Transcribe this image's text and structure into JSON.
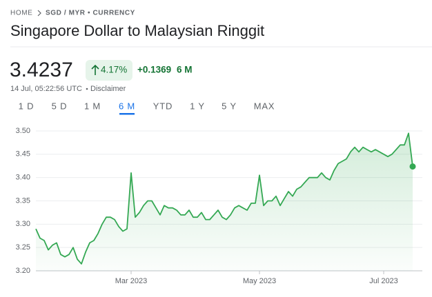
{
  "breadcrumb": [
    "HOME",
    "SGD / MYR • CURRENCY"
  ],
  "title": "Singapore Dollar to Malaysian Ringgit",
  "price": "3.4237",
  "change_pct": "4.17%",
  "change_abs": "+0.1369",
  "change_period": "6 M",
  "timestamp": "14 Jul, 05:22:56 UTC",
  "disclaimer": "Disclaimer",
  "tabs": [
    "1 D",
    "5 D",
    "1 M",
    "6 M",
    "YTD",
    "1 Y",
    "5 Y",
    "MAX"
  ],
  "active_tab": 3,
  "chart_data": {
    "type": "line",
    "fill": true,
    "grid": true,
    "color": "#34a853",
    "categories": [
      null,
      null,
      null,
      null,
      null,
      null,
      null,
      null,
      null,
      null,
      null,
      null,
      null,
      null,
      null,
      null,
      null,
      null,
      null,
      null,
      null,
      null,
      null,
      "Mar 2023",
      null,
      null,
      null,
      null,
      null,
      null,
      null,
      null,
      null,
      null,
      null,
      null,
      null,
      null,
      null,
      null,
      null,
      null,
      null,
      null,
      null,
      null,
      null,
      null,
      null,
      null,
      null,
      null,
      null,
      null,
      "May 2023",
      null,
      null,
      null,
      null,
      null,
      null,
      null,
      null,
      null,
      null,
      null,
      null,
      null,
      null,
      null,
      null,
      null,
      null,
      null,
      null,
      null,
      null,
      null,
      null,
      null,
      null,
      null,
      null,
      null,
      "Jul 2023",
      null,
      null,
      null,
      null,
      null,
      null,
      null
    ],
    "values": [
      3.29,
      3.27,
      3.265,
      3.245,
      3.255,
      3.26,
      3.235,
      3.23,
      3.235,
      3.25,
      3.225,
      3.215,
      3.24,
      3.26,
      3.265,
      3.28,
      3.3,
      3.315,
      3.315,
      3.31,
      3.295,
      3.285,
      3.29,
      3.41,
      3.315,
      3.325,
      3.34,
      3.35,
      3.35,
      3.335,
      3.32,
      3.34,
      3.335,
      3.335,
      3.33,
      3.32,
      3.32,
      3.33,
      3.315,
      3.315,
      3.325,
      3.31,
      3.31,
      3.32,
      3.33,
      3.315,
      3.31,
      3.32,
      3.335,
      3.34,
      3.335,
      3.33,
      3.345,
      3.345,
      3.405,
      3.34,
      3.35,
      3.35,
      3.36,
      3.34,
      3.355,
      3.37,
      3.36,
      3.375,
      3.38,
      3.39,
      3.4,
      3.4,
      3.4,
      3.41,
      3.4,
      3.395,
      3.415,
      3.43,
      3.435,
      3.44,
      3.455,
      3.465,
      3.455,
      3.465,
      3.46,
      3.455,
      3.46,
      3.455,
      3.45,
      3.445,
      3.45,
      3.46,
      3.47,
      3.47,
      3.495,
      3.4237
    ],
    "ylim": [
      3.2,
      3.5
    ],
    "yticks": [
      {
        "value": 3.2,
        "label": "3.20"
      },
      3.25,
      {
        "value": 3.3,
        "label": "3.30"
      },
      3.35,
      {
        "value": 3.4,
        "label": "3.40"
      },
      3.45,
      {
        "value": 3.5,
        "label": "3.50"
      }
    ]
  }
}
